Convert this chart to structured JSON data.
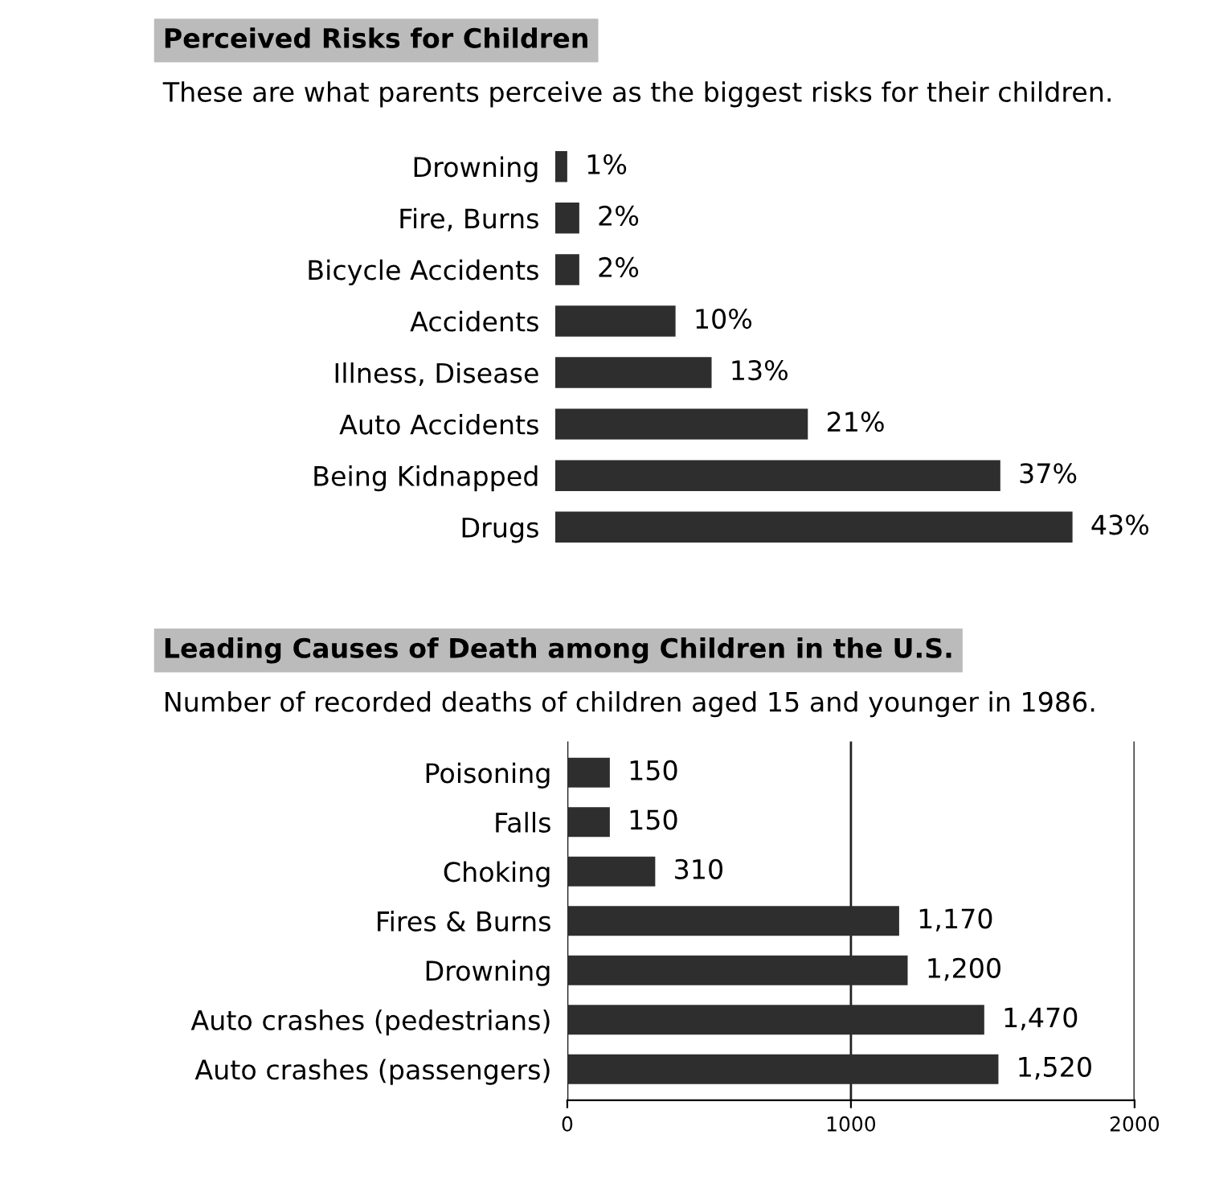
{
  "chart_data": [
    {
      "type": "bar",
      "orientation": "horizontal",
      "title": "Perceived Risks for Children",
      "subtitle": "These are what parents perceive as the biggest risks for their children.",
      "categories": [
        "Drowning",
        "Fire, Burns",
        "Bicycle Accidents",
        "Accidents",
        "Illness, Disease",
        "Auto Accidents",
        "Being Kidnapped",
        "Drugs"
      ],
      "values": [
        1,
        2,
        2,
        10,
        13,
        21,
        37,
        43
      ],
      "value_labels": [
        "1%",
        "2%",
        "2%",
        "10%",
        "13%",
        "21%",
        "37%",
        "43%"
      ],
      "color": "#2e2e2e",
      "tick_labels": "y",
      "grid": false
    },
    {
      "type": "bar",
      "orientation": "horizontal",
      "title": "Leading Causes of Death among Children in the U.S.",
      "subtitle": "Number of recorded deaths of children aged 15 and younger in 1986.",
      "categories": [
        "Poisoning",
        "Falls",
        "Choking",
        "Fires & Burns",
        "Drowning",
        "Auto crashes (pedestrians)",
        "Auto crashes (passengers)"
      ],
      "values": [
        150,
        150,
        310,
        1170,
        1200,
        1470,
        1520
      ],
      "value_labels": [
        "150",
        "150",
        "310",
        "1,170",
        "1,200",
        "1,470",
        "1,520"
      ],
      "color": "#2e2e2e",
      "xlim": [
        0,
        2000
      ],
      "xticks": [
        0,
        1000,
        2000
      ],
      "grid": "x"
    }
  ]
}
